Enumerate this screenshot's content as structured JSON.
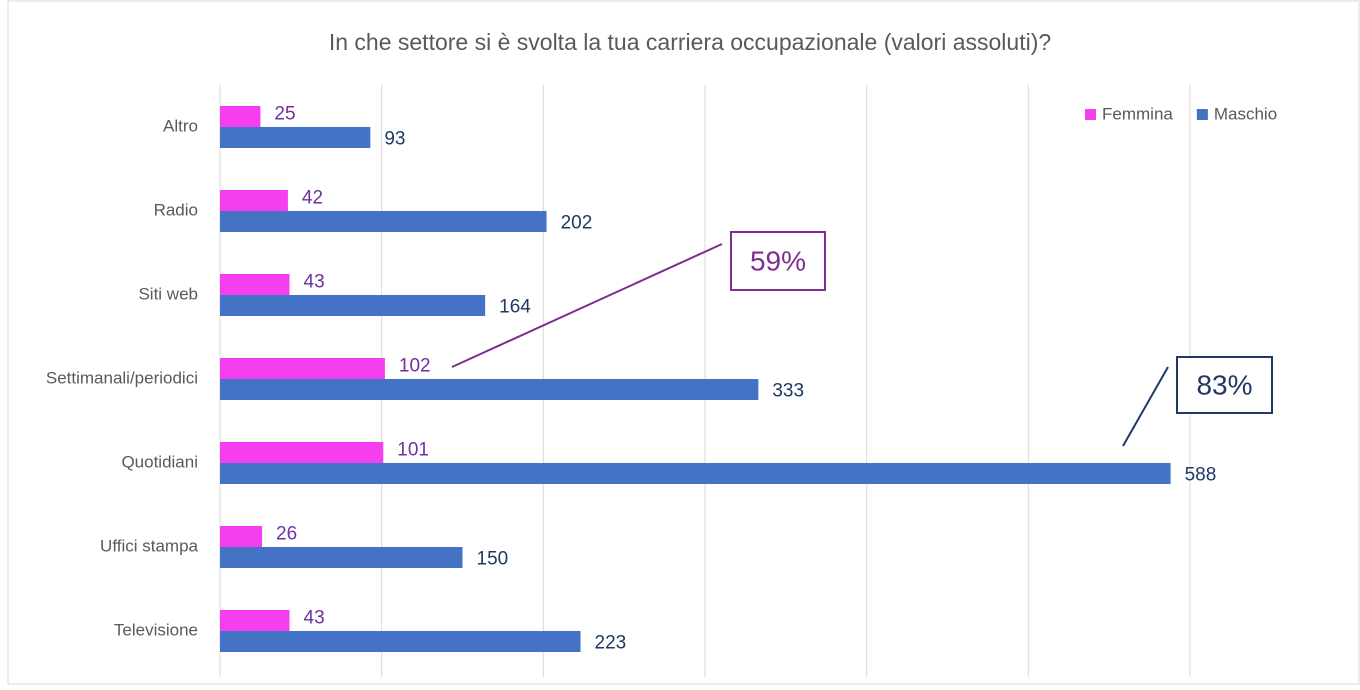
{
  "chart_data": {
    "type": "barh",
    "title": "In che settore si è svolta la tua carriera occupazionale (valori assoluti)?",
    "categories": [
      "Altro",
      "Radio",
      "Siti web",
      "Settimanali/periodici",
      "Quotidiani",
      "Uffici stampa",
      "Televisione"
    ],
    "series": [
      {
        "name": "Femmina",
        "color": "#f53ef0",
        "label_color": "#7030a0",
        "values": [
          25,
          42,
          43,
          102,
          101,
          26,
          43
        ]
      },
      {
        "name": "Maschio",
        "color": "#4472c4",
        "label_color": "#1f3864",
        "values": [
          93,
          202,
          164,
          333,
          588,
          150,
          223
        ]
      }
    ],
    "xlim": [
      0,
      600
    ],
    "xticks": [
      0,
      100,
      200,
      300,
      400,
      500,
      600
    ],
    "grid": true,
    "legend": "top-right",
    "annotations": [
      {
        "text": "59%",
        "color": "#7e2f8e"
      },
      {
        "text": "83%",
        "color": "#1f3864"
      }
    ]
  }
}
